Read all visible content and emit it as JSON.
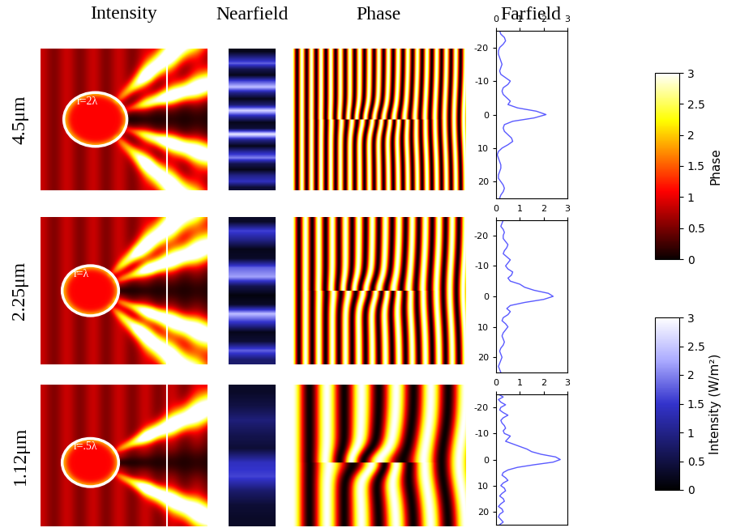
{
  "column_titles": [
    "Intensity",
    "Nearfield",
    "Phase",
    "Farfield"
  ],
  "rows": [
    {
      "label": "4.5μm",
      "radius_label": "r=2λ",
      "nearfield": [
        0.2,
        1.0,
        1.8,
        0.6,
        0.2,
        1.6,
        2.4,
        1.0,
        0.2,
        0.8,
        2.6,
        1.2,
        0.2,
        0.4,
        2.8,
        1.0,
        0.2,
        1.2,
        2.0,
        0.6,
        0.2,
        1.0,
        1.4,
        0.4
      ]
    },
    {
      "label": "2.25μm",
      "radius_label": "r=λ",
      "nearfield": [
        0.3,
        1.6,
        1.0,
        0.2,
        0.3,
        1.8,
        2.2,
        0.6,
        0.1,
        0.3,
        2.4,
        1.4,
        0.2,
        0.4,
        1.8,
        0.8
      ]
    },
    {
      "label": "1.12μm",
      "radius_label": "r=.5λ",
      "nearfield": [
        0.3,
        0.5,
        0.9,
        0.6,
        0.4,
        1.4,
        1.6,
        0.8,
        0.4,
        0.3
      ]
    }
  ],
  "colorbars": [
    {
      "label": "Phase",
      "range": [
        0,
        3
      ],
      "ticks": [
        0,
        0.5,
        1,
        1.5,
        2,
        2.5,
        3
      ]
    },
    {
      "label": "Intensity (W/m²)",
      "range": [
        0,
        3
      ],
      "ticks": [
        0,
        0.5,
        1,
        1.5,
        2,
        2.5,
        3
      ]
    }
  ],
  "chart_data": [
    {
      "type": "line",
      "color": "#5a5aff",
      "xlim": [
        0,
        3
      ],
      "xticks": [
        0,
        1,
        2,
        3
      ],
      "ylim": [
        25,
        -25
      ],
      "yticks": [
        -20,
        -10,
        0,
        10,
        20
      ],
      "y": [
        -25,
        -24,
        -23,
        -22,
        -21,
        -20,
        -19,
        -18,
        -17,
        -16,
        -15,
        -14,
        -13,
        -12,
        -11,
        -10,
        -9,
        -8,
        -7,
        -6,
        -5,
        -4,
        -3,
        -2,
        -1,
        0,
        1,
        2,
        3,
        4,
        5,
        6,
        7,
        8,
        9,
        10,
        11,
        12,
        13,
        14,
        15,
        16,
        17,
        18,
        19,
        20,
        21,
        22,
        23,
        24,
        25
      ],
      "x": [
        0.15,
        0.2,
        0.35,
        0.4,
        0.3,
        0.15,
        0.1,
        0.1,
        0.15,
        0.2,
        0.25,
        0.2,
        0.15,
        0.2,
        0.4,
        0.6,
        0.5,
        0.3,
        0.25,
        0.3,
        0.45,
        0.6,
        0.5,
        0.9,
        1.7,
        2.1,
        1.6,
        0.7,
        0.35,
        0.3,
        0.35,
        0.5,
        0.65,
        0.7,
        0.5,
        0.25,
        0.1,
        0.05,
        0.1,
        0.15,
        0.2,
        0.2,
        0.15,
        0.1,
        0.1,
        0.2,
        0.3,
        0.35,
        0.3,
        0.2,
        0.15
      ]
    },
    {
      "type": "line",
      "color": "#5a5aff",
      "xlim": [
        0,
        3
      ],
      "xticks": [
        0,
        1,
        2,
        3
      ],
      "ylim": [
        25,
        -25
      ],
      "yticks": [
        -20,
        -10,
        0,
        10,
        20
      ],
      "y": [
        -25,
        -24,
        -23,
        -22,
        -21,
        -20,
        -19,
        -18,
        -17,
        -16,
        -15,
        -14,
        -13,
        -12,
        -11,
        -10,
        -9,
        -8,
        -7,
        -6,
        -5,
        -4,
        -3,
        -2,
        -1,
        0,
        1,
        2,
        3,
        4,
        5,
        6,
        7,
        8,
        9,
        10,
        11,
        12,
        13,
        14,
        15,
        16,
        17,
        18,
        19,
        20,
        21,
        22,
        23,
        24,
        25
      ],
      "x": [
        0.3,
        0.25,
        0.2,
        0.3,
        0.35,
        0.3,
        0.3,
        0.4,
        0.5,
        0.45,
        0.35,
        0.3,
        0.45,
        0.6,
        0.5,
        0.4,
        0.5,
        0.7,
        0.65,
        0.5,
        0.6,
        1.0,
        1.2,
        1.6,
        2.2,
        2.4,
        2.0,
        1.2,
        0.6,
        0.45,
        0.6,
        0.5,
        0.3,
        0.25,
        0.4,
        0.5,
        0.4,
        0.3,
        0.25,
        0.3,
        0.35,
        0.3,
        0.2,
        0.15,
        0.2,
        0.25,
        0.2,
        0.15,
        0.1,
        0.15,
        0.2
      ]
    },
    {
      "type": "line",
      "color": "#5a5aff",
      "xlim": [
        0,
        3
      ],
      "xticks": [
        0,
        1,
        2,
        3
      ],
      "ylim": [
        25,
        -25
      ],
      "yticks": [
        -20,
        -10,
        0,
        10,
        20
      ],
      "y": [
        -25,
        -24,
        -23,
        -22,
        -21,
        -20,
        -19,
        -18,
        -17,
        -16,
        -15,
        -14,
        -13,
        -12,
        -11,
        -10,
        -9,
        -8,
        -7,
        -6,
        -5,
        -4,
        -3,
        -2,
        -1,
        0,
        1,
        2,
        3,
        4,
        5,
        6,
        7,
        8,
        9,
        10,
        11,
        12,
        13,
        14,
        15,
        16,
        17,
        18,
        19,
        20,
        21,
        22,
        23,
        24,
        25
      ],
      "x": [
        0.1,
        0.3,
        0.1,
        0.2,
        0.4,
        0.2,
        0.15,
        0.3,
        0.5,
        0.3,
        0.2,
        0.25,
        0.35,
        0.4,
        0.3,
        0.35,
        0.6,
        0.5,
        0.4,
        0.7,
        1.0,
        1.3,
        1.5,
        1.9,
        2.5,
        2.7,
        2.4,
        1.6,
        0.9,
        0.5,
        0.3,
        0.25,
        0.4,
        0.5,
        0.3,
        0.2,
        0.35,
        0.4,
        0.25,
        0.15,
        0.3,
        0.35,
        0.2,
        0.1,
        0.25,
        0.3,
        0.15,
        0.1,
        0.2,
        0.3,
        0.15
      ]
    }
  ]
}
